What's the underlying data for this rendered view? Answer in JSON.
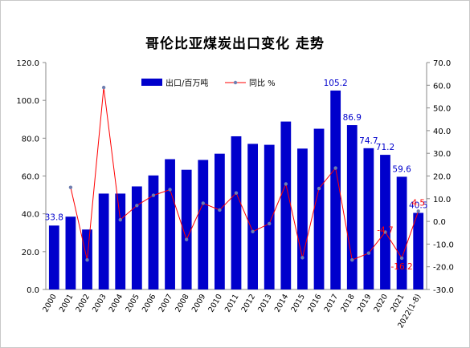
{
  "chart_data": {
    "type": "bar",
    "title": "哥伦比亚煤炭出口变化 走势",
    "categories": [
      "2000",
      "2001",
      "2002",
      "2003",
      "2004",
      "2005",
      "2006",
      "2007",
      "2008",
      "2009",
      "2010",
      "2011",
      "2012",
      "2013",
      "2014",
      "2015",
      "2016",
      "2017",
      "2018",
      "2019",
      "2020",
      "2021",
      "2022(1-8)"
    ],
    "series": [
      {
        "name": "出口/百万吨",
        "type": "bar",
        "axis": "left",
        "color": "#0000cc",
        "values": [
          33.8,
          38.5,
          31.7,
          50.7,
          50.7,
          54.5,
          60.3,
          68.9,
          63.3,
          68.5,
          71.8,
          81.0,
          77.0,
          76.5,
          88.8,
          74.5,
          85.0,
          105.2,
          86.9,
          74.7,
          71.2,
          59.6,
          40.5
        ]
      },
      {
        "name": "同比 %",
        "type": "line",
        "axis": "right",
        "color": "#ff0000",
        "marker_color": "#6f7fb0",
        "values": [
          null,
          15.0,
          -17.0,
          59.0,
          0.7,
          7.0,
          11.5,
          14.0,
          -8.0,
          8.0,
          5.0,
          12.5,
          -4.5,
          -1.0,
          16.5,
          -16.0,
          14.5,
          23.5,
          -17.0,
          -14.0,
          -4.7,
          -16.2,
          4.5
        ]
      }
    ],
    "data_labels": [
      {
        "series": 0,
        "index": 0,
        "text": "33.8",
        "color": "#0000cc"
      },
      {
        "series": 0,
        "index": 17,
        "text": "105.2",
        "color": "#0000cc"
      },
      {
        "series": 0,
        "index": 18,
        "text": "86.9",
        "color": "#0000cc"
      },
      {
        "series": 0,
        "index": 19,
        "text": "74.7",
        "color": "#0000cc"
      },
      {
        "series": 0,
        "index": 20,
        "text": "71.2",
        "color": "#0000cc"
      },
      {
        "series": 0,
        "index": 21,
        "text": "59.6",
        "color": "#0000cc"
      },
      {
        "series": 0,
        "index": 22,
        "text": "40.5",
        "color": "#0000cc"
      },
      {
        "series": 1,
        "index": 20,
        "text": "-4.7",
        "color": "#ff0000"
      },
      {
        "series": 1,
        "index": 21,
        "text": "-16.2",
        "color": "#ff0000"
      },
      {
        "series": 1,
        "index": 22,
        "text": "4.5",
        "color": "#ff0000"
      }
    ],
    "y_left": {
      "min": 0,
      "max": 120,
      "step": 20,
      "ticks": [
        "0.0",
        "20.0",
        "40.0",
        "60.0",
        "80.0",
        "100.0",
        "120.0"
      ]
    },
    "y_right": {
      "min": -30,
      "max": 70,
      "step": 10,
      "ticks": [
        "-30.0",
        "-20.0",
        "-10.0",
        "0.0",
        "10.0",
        "20.0",
        "30.0",
        "40.0",
        "50.0",
        "60.0",
        "70.0"
      ]
    },
    "legend_position": "top",
    "grid": false
  }
}
